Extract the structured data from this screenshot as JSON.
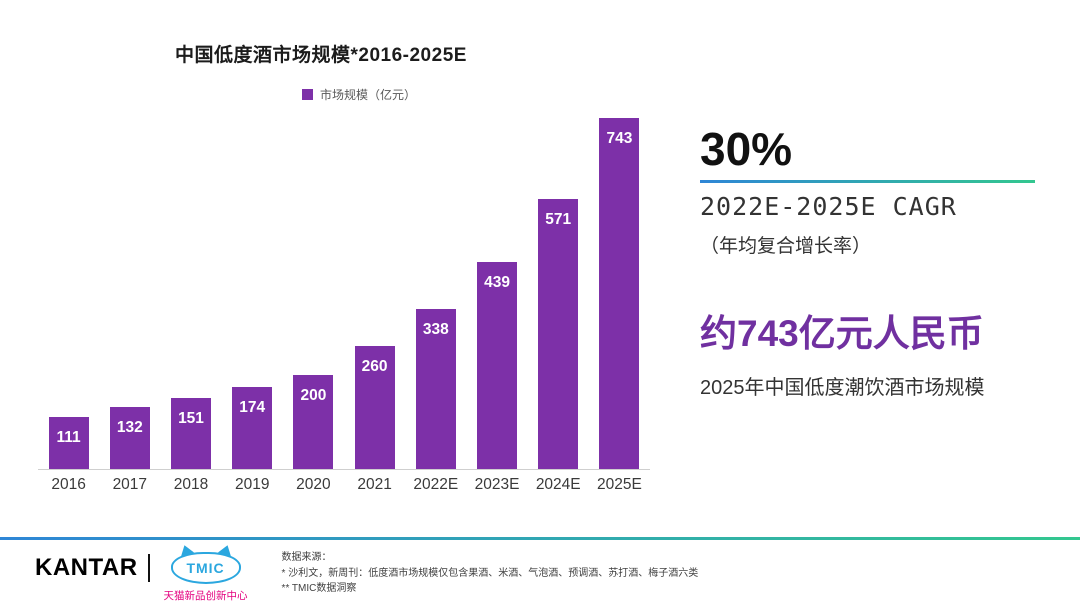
{
  "chart": {
    "title": "中国低度酒市场规模*2016-2025E",
    "legend_label": "市场规模（亿元）"
  },
  "chart_data": {
    "type": "bar",
    "title": "中国低度酒市场规模*2016-2025E",
    "categories": [
      "2016",
      "2017",
      "2018",
      "2019",
      "2020",
      "2021",
      "2022E",
      "2023E",
      "2024E",
      "2025E"
    ],
    "values": [
      111,
      132,
      151,
      174,
      200,
      260,
      338,
      439,
      571,
      743
    ],
    "series_name": "市场规模（亿元）",
    "ylim": [
      0,
      743
    ],
    "grid": false,
    "legend_position": "top",
    "bar_color": "#7D30A8"
  },
  "right_panel": {
    "cagr_value": "30%",
    "cagr_label": "2022E-2025E CAGR",
    "cagr_sublabel": "（年均复合增长率）",
    "market_value": "约743亿元人民币",
    "market_label": "2025年中国低度潮饮酒市场规模"
  },
  "footer": {
    "kantar_logo": "KANTAR",
    "tmic_logo": "TMIC",
    "tmic_label": "天猫新品创新中心",
    "source_line1": "数据来源：",
    "source_line2": "* 沙利文，新周刊：低度酒市场规模仅包含果酒、米酒、气泡酒、预调酒、苏打酒、梅子酒六类",
    "source_line3": "** TMIC数据洞察"
  },
  "colors": {
    "bar": "#7D30A8",
    "accent_purple": "#7030A0",
    "gradient_start": "#2E86D6",
    "gradient_end": "#33C78F",
    "tmic_blue": "#2BA7DF",
    "tmic_pink": "#E4007F"
  }
}
